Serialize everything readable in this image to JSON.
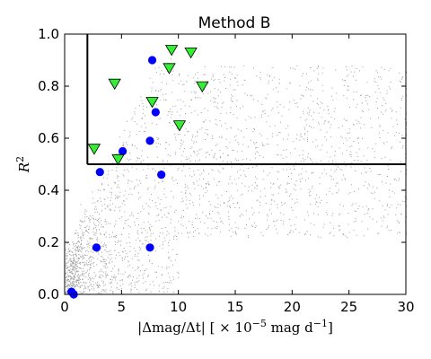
{
  "chart_data": {
    "type": "scatter",
    "title": "Method B",
    "xlabel": "|Δmag/Δt| [ × 10⁻⁵ mag d⁻¹]",
    "ylabel": "R²",
    "xlim": [
      0,
      30
    ],
    "ylim": [
      0.0,
      1.0
    ],
    "x_ticks": [
      "0",
      "5",
      "10",
      "15",
      "20",
      "25",
      "30"
    ],
    "y_ticks": [
      "0.0",
      "0.2",
      "0.4",
      "0.6",
      "0.8",
      "1.0"
    ],
    "grid": false,
    "colors": {
      "background_points": "#8c8c8c",
      "blue_circles": "#0000ff",
      "green_triangles": "#33ee33",
      "threshold_lines": "#000000"
    },
    "thresholds": {
      "x": 2.0,
      "y": 0.5
    },
    "background_points": {
      "count": 15000,
      "description_hidden": true
    },
    "series": [
      {
        "marker": "circle",
        "color": "#0000ff",
        "points": [
          [
            0.6,
            0.01
          ],
          [
            0.8,
            0.0
          ],
          [
            2.8,
            0.18
          ],
          [
            7.5,
            0.18
          ],
          [
            3.1,
            0.47
          ],
          [
            5.1,
            0.55
          ],
          [
            8.5,
            0.46
          ],
          [
            7.5,
            0.59
          ],
          [
            8.0,
            0.7
          ],
          [
            7.7,
            0.9
          ]
        ]
      },
      {
        "marker": "triangle-down",
        "color": "#33ee33",
        "points": [
          [
            2.6,
            0.56
          ],
          [
            4.7,
            0.52
          ],
          [
            4.4,
            0.81
          ],
          [
            7.7,
            0.74
          ],
          [
            9.4,
            0.94
          ],
          [
            9.2,
            0.87
          ],
          [
            11.1,
            0.93
          ],
          [
            10.1,
            0.65
          ],
          [
            12.1,
            0.8
          ]
        ]
      }
    ]
  }
}
